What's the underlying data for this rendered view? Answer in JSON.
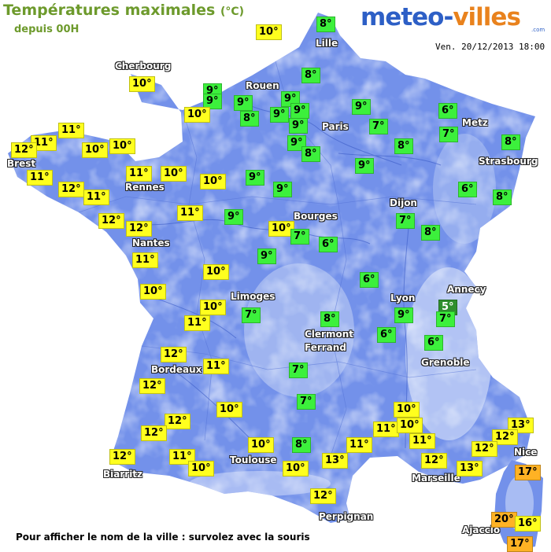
{
  "header": {
    "title": "Températures maximales",
    "title_unit": "(°C)",
    "subtitle": "depuis 00H",
    "date": "Ven. 20/12/2013 18:00"
  },
  "logo": {
    "part1": "meteo-",
    "part2": "villes",
    "com": ".com"
  },
  "footer": {
    "text": "Pour afficher le nom de la ville : survolez avec la souris"
  },
  "colors": {
    "land": "#7391ea",
    "land_light": "#cfdcf8",
    "sea": "#ffffff",
    "temp_green": "#3cf03c",
    "temp_yellow": "#ffff1e",
    "temp_dark_green": "#2f8f2f",
    "temp_orange": "#ffb224",
    "title": "#6d9a2c",
    "logo_blue": "#2d5fc6",
    "logo_orange": "#e9821d"
  },
  "cities": [
    {
      "name": "Lille"
    },
    {
      "name": "Cherbourg"
    },
    {
      "name": "Rouen"
    },
    {
      "name": "Paris"
    },
    {
      "name": "Metz"
    },
    {
      "name": "Strasbourg"
    },
    {
      "name": "Brest"
    },
    {
      "name": "Rennes"
    },
    {
      "name": "Dijon"
    },
    {
      "name": "Bourges"
    },
    {
      "name": "Nantes"
    },
    {
      "name": "Annecy"
    },
    {
      "name": "Limoges"
    },
    {
      "name": "Lyon"
    },
    {
      "name": "Clermont"
    },
    {
      "name": "Ferrand"
    },
    {
      "name": "Grenoble"
    },
    {
      "name": "Bordeaux"
    },
    {
      "name": "Toulouse"
    },
    {
      "name": "Nice"
    },
    {
      "name": "Biarritz"
    },
    {
      "name": "Marseille"
    },
    {
      "name": "Perpignan"
    },
    {
      "name": "Ajaccio"
    }
  ],
  "temperatures": [
    {
      "value": "8°",
      "color": "green"
    },
    {
      "value": "10°",
      "color": "yellow"
    },
    {
      "value": "8°",
      "color": "green"
    },
    {
      "value": "10°",
      "color": "yellow"
    },
    {
      "value": "9°",
      "color": "green"
    },
    {
      "value": "9°",
      "color": "green"
    },
    {
      "value": "9°",
      "color": "green"
    },
    {
      "value": "10°",
      "color": "yellow"
    },
    {
      "value": "8°",
      "color": "green"
    },
    {
      "value": "9°",
      "color": "green"
    },
    {
      "value": "9°",
      "color": "green"
    },
    {
      "value": "9°",
      "color": "green"
    },
    {
      "value": "9°",
      "color": "green"
    },
    {
      "value": "9°",
      "color": "green"
    },
    {
      "value": "7°",
      "color": "green"
    },
    {
      "value": "6°",
      "color": "green"
    },
    {
      "value": "7°",
      "color": "green"
    },
    {
      "value": "11°",
      "color": "yellow"
    },
    {
      "value": "11°",
      "color": "yellow"
    },
    {
      "value": "10°",
      "color": "yellow"
    },
    {
      "value": "10°",
      "color": "yellow"
    },
    {
      "value": "12°",
      "color": "yellow"
    },
    {
      "value": "9°",
      "color": "green"
    },
    {
      "value": "8°",
      "color": "green"
    },
    {
      "value": "8°",
      "color": "green"
    },
    {
      "value": "8°",
      "color": "green"
    },
    {
      "value": "11°",
      "color": "yellow"
    },
    {
      "value": "11°",
      "color": "yellow"
    },
    {
      "value": "10°",
      "color": "yellow"
    },
    {
      "value": "10°",
      "color": "yellow"
    },
    {
      "value": "9°",
      "color": "green"
    },
    {
      "value": "9°",
      "color": "green"
    },
    {
      "value": "9°",
      "color": "green"
    },
    {
      "value": "6°",
      "color": "green"
    },
    {
      "value": "8°",
      "color": "green"
    },
    {
      "value": "12°",
      "color": "yellow"
    },
    {
      "value": "11°",
      "color": "yellow"
    },
    {
      "value": "11°",
      "color": "yellow"
    },
    {
      "value": "9°",
      "color": "green"
    },
    {
      "value": "7°",
      "color": "green"
    },
    {
      "value": "12°",
      "color": "yellow"
    },
    {
      "value": "12°",
      "color": "yellow"
    },
    {
      "value": "10°",
      "color": "yellow"
    },
    {
      "value": "7°",
      "color": "green"
    },
    {
      "value": "8°",
      "color": "green"
    },
    {
      "value": "6°",
      "color": "green"
    },
    {
      "value": "9°",
      "color": "green"
    },
    {
      "value": "11°",
      "color": "yellow"
    },
    {
      "value": "10°",
      "color": "yellow"
    },
    {
      "value": "6°",
      "color": "green"
    },
    {
      "value": "5°",
      "color": "dark"
    },
    {
      "value": "10°",
      "color": "yellow"
    },
    {
      "value": "7°",
      "color": "green"
    },
    {
      "value": "7°",
      "color": "green"
    },
    {
      "value": "10°",
      "color": "yellow"
    },
    {
      "value": "8°",
      "color": "green"
    },
    {
      "value": "9°",
      "color": "green"
    },
    {
      "value": "11°",
      "color": "yellow"
    },
    {
      "value": "6°",
      "color": "green"
    },
    {
      "value": "6°",
      "color": "green"
    },
    {
      "value": "12°",
      "color": "yellow"
    },
    {
      "value": "11°",
      "color": "yellow"
    },
    {
      "value": "12°",
      "color": "yellow"
    },
    {
      "value": "7°",
      "color": "green"
    },
    {
      "value": "7°",
      "color": "green"
    },
    {
      "value": "10°",
      "color": "yellow"
    },
    {
      "value": "12°",
      "color": "yellow"
    },
    {
      "value": "10°",
      "color": "yellow"
    },
    {
      "value": "12°",
      "color": "yellow"
    },
    {
      "value": "11°",
      "color": "yellow"
    },
    {
      "value": "10°",
      "color": "yellow"
    },
    {
      "value": "13°",
      "color": "yellow"
    },
    {
      "value": "12°",
      "color": "yellow"
    },
    {
      "value": "12°",
      "color": "yellow"
    },
    {
      "value": "11°",
      "color": "yellow"
    },
    {
      "value": "10°",
      "color": "yellow"
    },
    {
      "value": "8°",
      "color": "green"
    },
    {
      "value": "11°",
      "color": "yellow"
    },
    {
      "value": "11°",
      "color": "yellow"
    },
    {
      "value": "12°",
      "color": "yellow"
    },
    {
      "value": "12°",
      "color": "yellow"
    },
    {
      "value": "10°",
      "color": "yellow"
    },
    {
      "value": "10°",
      "color": "yellow"
    },
    {
      "value": "13°",
      "color": "yellow"
    },
    {
      "value": "13°",
      "color": "yellow"
    },
    {
      "value": "17°",
      "color": "orange"
    },
    {
      "value": "12°",
      "color": "yellow"
    },
    {
      "value": "20°",
      "color": "orange"
    },
    {
      "value": "16°",
      "color": "yellow"
    },
    {
      "value": "17°",
      "color": "orange"
    }
  ]
}
